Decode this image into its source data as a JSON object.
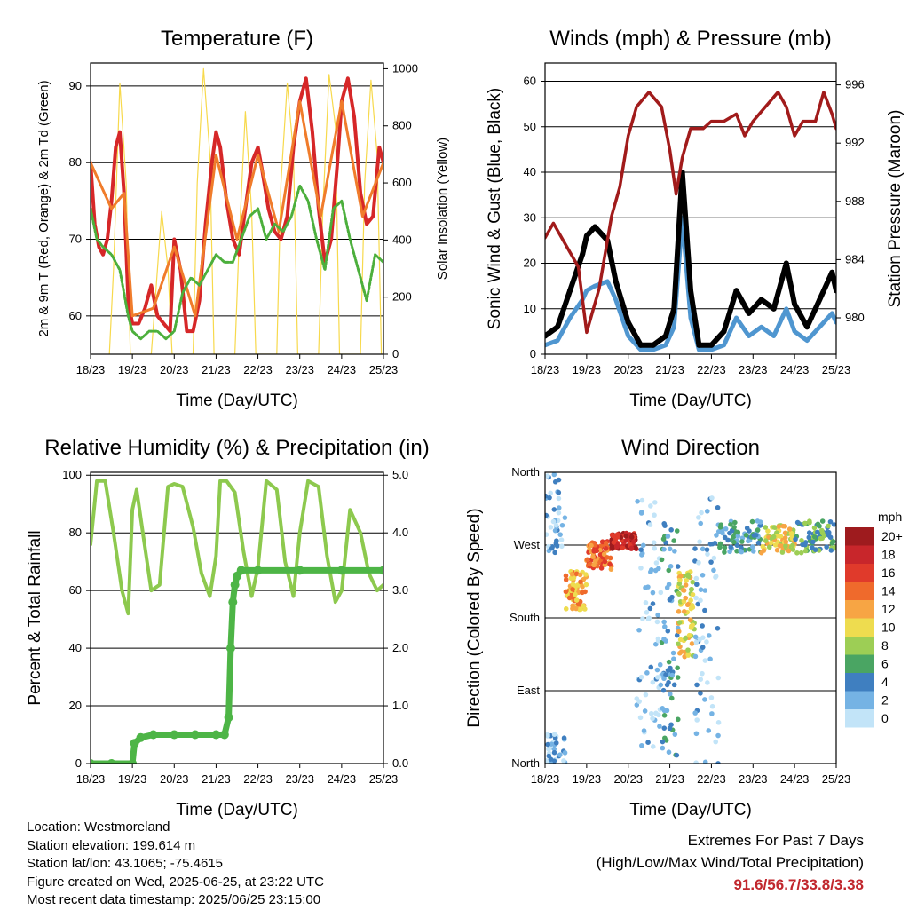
{
  "chart_data": [
    {
      "type": "line",
      "title": "Temperature (F)",
      "xlabel": "Time (Day/UTC)",
      "ylabel": "2m & 9m T (Red, Orange) & 2m Td (Green)",
      "y2label": "Solar Insolation (Yellow)",
      "x_ticks": [
        "18/23",
        "19/23",
        "20/23",
        "21/23",
        "22/23",
        "23/23",
        "24/23",
        "25/23"
      ],
      "ylim": [
        55,
        93
      ],
      "y_ticks": [
        60,
        70,
        80,
        90
      ],
      "y2lim": [
        0,
        1020
      ],
      "y2_ticks": [
        0,
        200,
        400,
        600,
        800,
        1000
      ],
      "grid": "horizontal",
      "colors": {
        "t2m": "#d62728",
        "t9m": "#f07c2b",
        "td": "#4caf3c",
        "solar": "#f7d94c"
      },
      "series": [
        {
          "key": "t2m",
          "axis": "y",
          "x": [
            0,
            0.1,
            0.2,
            0.3,
            0.4,
            0.5,
            0.6,
            0.7,
            0.8,
            0.9,
            1.0,
            1.15,
            1.3,
            1.45,
            1.6,
            1.75,
            1.9,
            2.0,
            2.15,
            2.3,
            2.45,
            2.6,
            2.75,
            2.9,
            3.0,
            3.1,
            3.25,
            3.4,
            3.55,
            3.7,
            3.85,
            4.0,
            4.1,
            4.25,
            4.4,
            4.55,
            4.7,
            4.85,
            5.0,
            5.15,
            5.3,
            5.45,
            5.6,
            5.75,
            5.9,
            6.0,
            6.15,
            6.3,
            6.45,
            6.6,
            6.75,
            6.9,
            7.0
          ],
          "values": [
            80,
            72,
            69,
            68,
            70,
            75,
            82,
            84,
            76,
            62,
            59,
            59,
            61,
            64,
            60,
            59,
            58,
            70,
            66,
            58,
            58,
            62,
            72,
            80,
            84,
            82,
            75,
            70,
            68,
            74,
            80,
            82,
            79,
            74,
            71,
            70,
            73,
            82,
            88,
            91,
            84,
            74,
            67,
            70,
            80,
            88,
            91,
            86,
            76,
            72,
            73,
            82,
            80
          ]
        },
        {
          "key": "t9m",
          "axis": "y",
          "x": [
            0,
            0.5,
            0.8,
            1.0,
            1.5,
            2.0,
            2.5,
            3.0,
            3.5,
            4.0,
            4.5,
            5.0,
            5.5,
            6.0,
            6.5,
            7.0
          ],
          "values": [
            80,
            74,
            76,
            60,
            61,
            69,
            60,
            81,
            70,
            81,
            71,
            88,
            73,
            88,
            73,
            80
          ]
        },
        {
          "key": "td",
          "axis": "y",
          "x": [
            0,
            0.15,
            0.3,
            0.5,
            0.7,
            0.9,
            1.0,
            1.2,
            1.4,
            1.6,
            1.8,
            2.0,
            2.2,
            2.4,
            2.6,
            2.8,
            3.0,
            3.2,
            3.4,
            3.6,
            3.8,
            4.0,
            4.2,
            4.4,
            4.6,
            4.8,
            5.0,
            5.2,
            5.4,
            5.6,
            5.8,
            6.0,
            6.2,
            6.4,
            6.6,
            6.8,
            7.0
          ],
          "values": [
            74,
            70,
            69,
            68,
            66,
            60,
            58,
            57,
            58,
            58,
            57,
            58,
            63,
            65,
            64,
            66,
            68,
            67,
            67,
            70,
            73,
            74,
            70,
            72,
            71,
            73,
            77,
            75,
            70,
            66,
            74,
            75,
            70,
            66,
            62,
            68,
            67
          ]
        },
        {
          "key": "solar",
          "axis": "y2",
          "x": [
            0.45,
            0.55,
            0.7,
            0.85,
            0.95,
            1.45,
            1.55,
            1.7,
            1.85,
            1.95,
            2.45,
            2.55,
            2.7,
            2.85,
            2.95,
            3.45,
            3.55,
            3.7,
            3.85,
            3.95,
            4.45,
            4.55,
            4.7,
            4.85,
            4.95,
            5.45,
            5.55,
            5.7,
            5.85,
            5.95,
            6.45,
            6.55,
            6.7,
            6.85,
            6.95
          ],
          "values": [
            0,
            300,
            950,
            600,
            0,
            0,
            200,
            500,
            300,
            0,
            0,
            600,
            1000,
            700,
            0,
            0,
            400,
            850,
            500,
            0,
            0,
            600,
            950,
            700,
            0,
            0,
            500,
            980,
            800,
            0,
            0,
            600,
            960,
            700,
            0
          ]
        }
      ]
    },
    {
      "type": "line",
      "title": "Winds (mph) & Pressure (mb)",
      "xlabel": "Time (Day/UTC)",
      "ylabel": "Sonic Wind & Gust (Blue, Black)",
      "y2label": "Station Pressure (Maroon)",
      "x_ticks": [
        "18/23",
        "19/23",
        "20/23",
        "21/23",
        "22/23",
        "23/23",
        "24/23",
        "25/23"
      ],
      "ylim": [
        0,
        64
      ],
      "y_ticks": [
        0,
        10,
        20,
        30,
        40,
        50,
        60
      ],
      "y2lim": [
        977.5,
        997.5
      ],
      "y2_ticks": [
        980,
        984,
        988,
        992,
        996
      ],
      "grid": "horizontal",
      "colors": {
        "wind": "#4f96d0",
        "gust": "#000000",
        "pressure": "#a11b1b"
      },
      "series": [
        {
          "key": "wind",
          "axis": "y",
          "x": [
            0,
            0.3,
            0.6,
            0.9,
            1.0,
            1.2,
            1.5,
            1.7,
            2.0,
            2.3,
            2.6,
            2.9,
            3.1,
            3.3,
            3.5,
            3.7,
            4.0,
            4.3,
            4.6,
            4.9,
            5.2,
            5.5,
            5.8,
            6.0,
            6.3,
            6.6,
            6.9,
            7.0
          ],
          "values": [
            2,
            3,
            8,
            12,
            14,
            15,
            16,
            12,
            4,
            1,
            1,
            2,
            6,
            30,
            8,
            1,
            1,
            2,
            8,
            4,
            6,
            4,
            10,
            5,
            3,
            6,
            9,
            7
          ]
        },
        {
          "key": "gust",
          "axis": "y",
          "x": [
            0,
            0.3,
            0.6,
            0.9,
            1.0,
            1.2,
            1.5,
            1.7,
            2.0,
            2.3,
            2.6,
            2.9,
            3.1,
            3.3,
            3.5,
            3.7,
            4.0,
            4.3,
            4.6,
            4.9,
            5.2,
            5.5,
            5.8,
            6.0,
            6.3,
            6.6,
            6.9,
            7.0
          ],
          "values": [
            4,
            6,
            14,
            22,
            26,
            28,
            25,
            16,
            7,
            2,
            2,
            4,
            10,
            40,
            14,
            2,
            2,
            5,
            14,
            9,
            12,
            10,
            20,
            11,
            6,
            12,
            18,
            14
          ]
        },
        {
          "key": "pressure",
          "axis": "y2",
          "x": [
            0,
            0.2,
            0.5,
            0.8,
            1.0,
            1.3,
            1.6,
            1.8,
            2.0,
            2.2,
            2.5,
            2.8,
            3.0,
            3.15,
            3.3,
            3.5,
            3.8,
            4.0,
            4.3,
            4.6,
            4.8,
            5.0,
            5.3,
            5.6,
            5.8,
            6.0,
            6.2,
            6.5,
            6.7,
            6.9,
            7.0
          ],
          "values": [
            985.5,
            986.5,
            985,
            983.5,
            979,
            982,
            987,
            989,
            992.5,
            994.5,
            995.5,
            994.5,
            991.5,
            988.5,
            991,
            993,
            993,
            993.5,
            993.5,
            994,
            992.5,
            993.5,
            994.5,
            995.5,
            994.5,
            992.5,
            993.5,
            993.5,
            995.5,
            994,
            993
          ]
        }
      ]
    },
    {
      "type": "line",
      "title": "Relative Humidity (%) & Precipitation (in)",
      "xlabel": "Time (Day/UTC)",
      "ylabel": "Percent & Total Rainfall",
      "x_ticks": [
        "18/23",
        "19/23",
        "20/23",
        "21/23",
        "22/23",
        "23/23",
        "24/23",
        "25/23"
      ],
      "ylim": [
        0,
        101
      ],
      "y_ticks": [
        0,
        20,
        40,
        60,
        80,
        100
      ],
      "y2lim": [
        0,
        5.05
      ],
      "y2_ticks": [
        "0.0",
        "1.0",
        "2.0",
        "3.0",
        "4.0",
        "5.0"
      ],
      "grid": "horizontal",
      "colors": {
        "rh": "#8dc94e",
        "precip": "#4db546"
      },
      "series": [
        {
          "key": "rh",
          "axis": "y",
          "x": [
            0,
            0.15,
            0.35,
            0.55,
            0.75,
            0.9,
            1.0,
            1.1,
            1.25,
            1.45,
            1.65,
            1.85,
            2.0,
            2.2,
            2.45,
            2.65,
            2.85,
            3.0,
            3.1,
            3.25,
            3.45,
            3.65,
            3.85,
            4.0,
            4.2,
            4.45,
            4.65,
            4.85,
            5.0,
            5.2,
            5.45,
            5.65,
            5.85,
            6.0,
            6.2,
            6.45,
            6.65,
            6.85,
            7.0
          ],
          "values": [
            76,
            98,
            98,
            80,
            60,
            52,
            88,
            95,
            80,
            60,
            62,
            96,
            97,
            96,
            82,
            66,
            58,
            72,
            98,
            98,
            94,
            74,
            58,
            68,
            98,
            95,
            70,
            58,
            80,
            98,
            96,
            72,
            56,
            60,
            88,
            80,
            66,
            60,
            62
          ]
        },
        {
          "key": "precip",
          "axis": "y2",
          "x": [
            0,
            0.5,
            1.0,
            1.05,
            1.2,
            1.5,
            2.0,
            2.5,
            3.0,
            3.2,
            3.3,
            3.35,
            3.4,
            3.45,
            3.5,
            3.6,
            4.0,
            5.0,
            6.0,
            7.0
          ],
          "values": [
            0,
            0,
            0,
            0.35,
            0.45,
            0.5,
            0.5,
            0.5,
            0.5,
            0.5,
            0.8,
            2.0,
            2.8,
            3.1,
            3.25,
            3.35,
            3.35,
            3.35,
            3.35,
            3.35
          ]
        }
      ]
    },
    {
      "type": "scatter",
      "title": "Wind Direction",
      "xlabel": "Time (Day/UTC)",
      "ylabel": "Direction (Colored By Speed)",
      "x_ticks": [
        "18/23",
        "19/23",
        "20/23",
        "21/23",
        "22/23",
        "23/23",
        "24/23",
        "25/23"
      ],
      "y_ticks": [
        "North",
        "East",
        "South",
        "West",
        "North"
      ],
      "ylim": [
        0,
        360
      ],
      "grid": "horizontal",
      "legend": {
        "title": "mph",
        "placement": "right",
        "labels": [
          "20+",
          "18",
          "16",
          "14",
          "12",
          "10",
          "8",
          "6",
          "4",
          "2",
          "0"
        ],
        "colors": [
          "#9e1b1e",
          "#c8262b",
          "#e03a2b",
          "#ef6a2c",
          "#f7a544",
          "#eedc4f",
          "#9dce55",
          "#4aa563",
          "#3f7fc0",
          "#75b3e4",
          "#c2e4f8"
        ]
      },
      "points_desc": "direction in degrees (0=North,90=East,180=South,270=West) vs day, colored by speed",
      "clusters": [
        {
          "x0": 0.0,
          "x1": 0.5,
          "dir0": 260,
          "dir1": 40,
          "speed": 2
        },
        {
          "x0": 0.5,
          "x1": 1.0,
          "dir0": 190,
          "dir1": 240,
          "speed": 12
        },
        {
          "x0": 1.0,
          "x1": 1.6,
          "dir0": 240,
          "dir1": 275,
          "speed": 14
        },
        {
          "x0": 1.6,
          "x1": 2.2,
          "dir0": 265,
          "dir1": 285,
          "speed": 18
        },
        {
          "x0": 2.2,
          "x1": 2.8,
          "dir0": 20,
          "dir1": 330,
          "speed": 1
        },
        {
          "x0": 2.8,
          "x1": 3.2,
          "dir0": 10,
          "dir1": 300,
          "speed": 4
        },
        {
          "x0": 3.2,
          "x1": 3.6,
          "dir0": 130,
          "dir1": 240,
          "speed": 10
        },
        {
          "x0": 3.6,
          "x1": 4.2,
          "dir0": 0,
          "dir1": 330,
          "speed": 2
        },
        {
          "x0": 4.2,
          "x1": 5.2,
          "dir0": 260,
          "dir1": 300,
          "speed": 4
        },
        {
          "x0": 5.2,
          "x1": 6.0,
          "dir0": 260,
          "dir1": 295,
          "speed": 10
        },
        {
          "x0": 6.0,
          "x1": 7.0,
          "dir0": 260,
          "dir1": 300,
          "speed": 6
        }
      ]
    }
  ],
  "info": {
    "location": "Location: Westmoreland",
    "elevation": "Station elevation: 199.614 m",
    "latlon": "Station lat/lon: 43.1065; -75.4615",
    "created": "Figure created on Wed, 2025-06-25, at 23:22 UTC",
    "recent": "Most recent data timestamp: 2025/06/25 23:15:00"
  },
  "extremes": {
    "title": "Extremes For Past 7 Days",
    "subtitle": "(High/Low/Max Wind/Total Precipitation)",
    "values": "91.6/56.7/33.8/3.38"
  }
}
